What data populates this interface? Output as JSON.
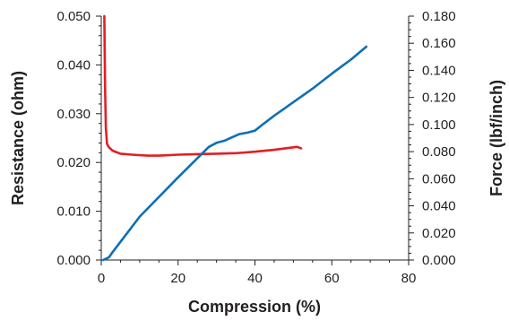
{
  "chart_data": {
    "type": "line",
    "title": "",
    "xlabel": "Compression (%)",
    "ylabel_left": "Resistance (ohm)",
    "ylabel_right": "Force (lbf/inch)",
    "xlim": [
      0,
      80
    ],
    "ylim_left": [
      0,
      0.05
    ],
    "ylim_right": [
      0,
      0.18
    ],
    "x_ticks": [
      "0",
      "20",
      "40",
      "60",
      "80"
    ],
    "y_left_ticks": [
      "0.000",
      "0.010",
      "0.020",
      "0.030",
      "0.040",
      "0.050"
    ],
    "y_right_ticks": [
      "0.000",
      "0.020",
      "0.040",
      "0.060",
      "0.080",
      "0.100",
      "0.120",
      "0.140",
      "0.160",
      "0.180"
    ],
    "grid": false,
    "series": [
      {
        "axis": "left",
        "color": "#e31e24",
        "x": [
          0.8,
          1.0,
          1.2,
          1.5,
          2,
          3,
          5,
          8,
          12,
          15,
          20,
          25,
          30,
          35,
          40,
          45,
          50,
          51,
          52
        ],
        "y": [
          0.05,
          0.035,
          0.027,
          0.0238,
          0.0231,
          0.0224,
          0.0218,
          0.0216,
          0.0214,
          0.0214,
          0.0216,
          0.0217,
          0.0218,
          0.0219,
          0.0222,
          0.0226,
          0.0231,
          0.0232,
          0.0229
        ]
      },
      {
        "axis": "right",
        "color": "#0f6fb3",
        "x": [
          0.5,
          2,
          3,
          10,
          20,
          28,
          30,
          32,
          34,
          36,
          38,
          40,
          42,
          45,
          50,
          55,
          60,
          65,
          69
        ],
        "y": [
          0.0,
          0.002,
          0.006,
          0.032,
          0.061,
          0.0835,
          0.0865,
          0.088,
          0.0905,
          0.093,
          0.094,
          0.0955,
          0.1,
          0.1065,
          0.1165,
          0.1265,
          0.1375,
          0.148,
          0.1575
        ]
      }
    ]
  }
}
